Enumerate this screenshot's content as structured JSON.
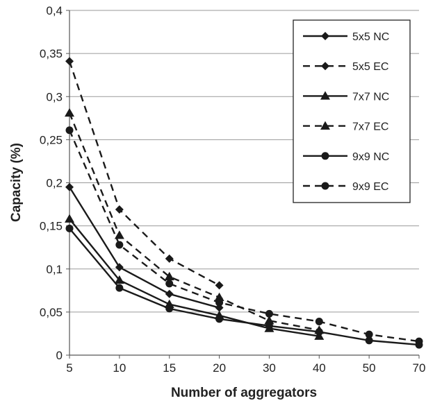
{
  "chart_data": {
    "type": "line",
    "title": "",
    "xlabel": "Number of aggregators",
    "ylabel": "Capacity (%)",
    "categories": [
      "5",
      "10",
      "15",
      "20",
      "30",
      "40",
      "50",
      "70"
    ],
    "ylim": [
      0,
      0.4
    ],
    "yticks": [
      0,
      0.05,
      0.1,
      0.15,
      0.2,
      0.25,
      0.3,
      0.35,
      0.4
    ],
    "ytick_labels": [
      "0",
      "0,05",
      "0,1",
      "0,15",
      "0,2",
      "0,25",
      "0,3",
      "0,35",
      "0,4"
    ],
    "grid": "horizontal",
    "legend_position": "top-right",
    "series": [
      {
        "name": "5x5 NC",
        "marker": "diamond",
        "dash": "solid",
        "values": [
          0.195,
          0.102,
          0.071,
          0.055,
          null,
          null,
          null,
          null
        ]
      },
      {
        "name": "5x5 EC",
        "marker": "diamond",
        "dash": "dashed",
        "values": [
          0.341,
          0.169,
          0.112,
          0.081,
          null,
          null,
          null,
          null
        ]
      },
      {
        "name": "7x7 NC",
        "marker": "triangle",
        "dash": "solid",
        "values": [
          0.158,
          0.087,
          0.059,
          0.046,
          0.031,
          0.022,
          null,
          null
        ]
      },
      {
        "name": "7x7 EC",
        "marker": "triangle",
        "dash": "dashed",
        "values": [
          0.281,
          0.139,
          0.091,
          0.067,
          0.04,
          0.029,
          null,
          null
        ]
      },
      {
        "name": "9x9 NC",
        "marker": "circle",
        "dash": "solid",
        "values": [
          0.147,
          0.078,
          0.054,
          0.042,
          0.034,
          0.027,
          0.017,
          0.012
        ]
      },
      {
        "name": "9x9 EC",
        "marker": "circle",
        "dash": "dashed",
        "values": [
          0.261,
          0.128,
          0.083,
          0.061,
          0.048,
          0.039,
          0.024,
          0.016
        ]
      }
    ]
  }
}
